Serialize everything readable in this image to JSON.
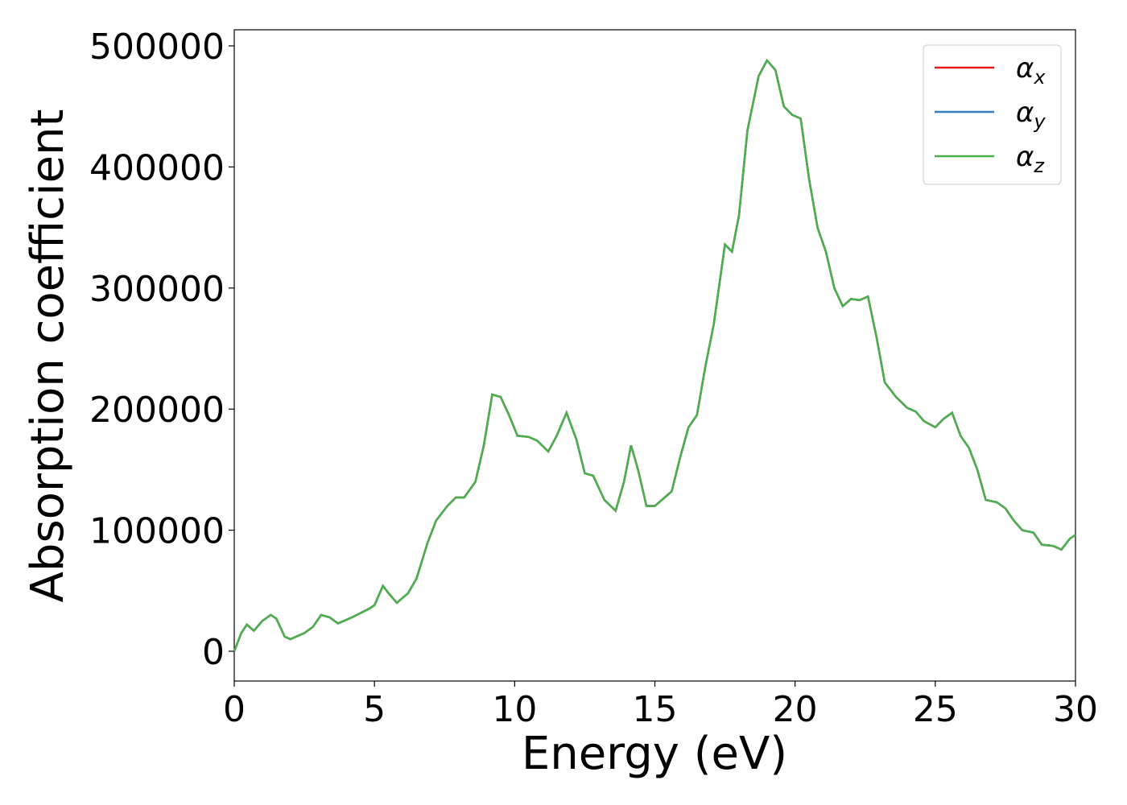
{
  "chart_data": {
    "type": "line",
    "xlabel": "Energy (eV)",
    "ylabel": "Absorption coefficient",
    "x": [
      0,
      0.25,
      0.45,
      0.7,
      1.0,
      1.3,
      1.5,
      1.8,
      2.0,
      2.5,
      2.8,
      3.1,
      3.4,
      3.7,
      4.2,
      4.8,
      5.0,
      5.3,
      5.5,
      5.8,
      6.2,
      6.5,
      6.9,
      7.2,
      7.6,
      7.9,
      8.2,
      8.6,
      8.9,
      9.2,
      9.5,
      9.8,
      10.1,
      10.5,
      10.8,
      11.2,
      11.5,
      11.85,
      12.2,
      12.5,
      12.8,
      13.2,
      13.6,
      13.9,
      14.15,
      14.4,
      14.7,
      15.0,
      15.3,
      15.6,
      15.9,
      16.2,
      16.5,
      16.8,
      17.1,
      17.5,
      17.75,
      18.0,
      18.3,
      18.7,
      19.0,
      19.3,
      19.6,
      19.9,
      20.2,
      20.5,
      20.8,
      21.1,
      21.4,
      21.7,
      22.0,
      22.3,
      22.6,
      22.9,
      23.2,
      23.6,
      24.0,
      24.3,
      24.6,
      25.0,
      25.3,
      25.6,
      25.9,
      26.2,
      26.5,
      26.8,
      27.2,
      27.5,
      27.8,
      28.1,
      28.5,
      28.8,
      29.2,
      29.5,
      29.8,
      30.0
    ],
    "series": [
      {
        "name": "αx",
        "color": "#e41a1c",
        "values": [
          0,
          15000,
          22000,
          17000,
          25000,
          30000,
          27000,
          12000,
          10000,
          15000,
          20000,
          30000,
          28000,
          23000,
          28000,
          35000,
          38000,
          54000,
          48000,
          40000,
          48000,
          60000,
          90000,
          108000,
          120000,
          127000,
          127000,
          140000,
          170000,
          212000,
          210000,
          195000,
          178000,
          177000,
          174000,
          165000,
          178000,
          197000,
          175000,
          147000,
          145000,
          125000,
          116000,
          140000,
          170000,
          150000,
          120000,
          120000,
          126000,
          132000,
          160000,
          185000,
          195000,
          235000,
          270000,
          336000,
          330000,
          360000,
          430000,
          475000,
          488000,
          480000,
          450000,
          443000,
          440000,
          390000,
          350000,
          330000,
          300000,
          285000,
          291000,
          290000,
          293000,
          260000,
          222000,
          210000,
          201000,
          198000,
          190000,
          185000,
          192000,
          197000,
          178000,
          168000,
          150000,
          125000,
          123000,
          118000,
          108000,
          100000,
          98000,
          88000,
          87000,
          84000,
          93000,
          96000
        ]
      },
      {
        "name": "αy",
        "color": "#377eb8",
        "values": [
          0,
          15000,
          22000,
          17000,
          25000,
          30000,
          27000,
          12000,
          10000,
          15000,
          20000,
          30000,
          28000,
          23000,
          28000,
          35000,
          38000,
          54000,
          48000,
          40000,
          48000,
          60000,
          90000,
          108000,
          120000,
          127000,
          127000,
          140000,
          170000,
          212000,
          210000,
          195000,
          178000,
          177000,
          174000,
          165000,
          178000,
          197000,
          175000,
          147000,
          145000,
          125000,
          116000,
          140000,
          170000,
          150000,
          120000,
          120000,
          126000,
          132000,
          160000,
          185000,
          195000,
          235000,
          270000,
          336000,
          330000,
          360000,
          430000,
          475000,
          488000,
          480000,
          450000,
          443000,
          440000,
          390000,
          350000,
          330000,
          300000,
          285000,
          291000,
          290000,
          293000,
          260000,
          222000,
          210000,
          201000,
          198000,
          190000,
          185000,
          192000,
          197000,
          178000,
          168000,
          150000,
          125000,
          123000,
          118000,
          108000,
          100000,
          98000,
          88000,
          87000,
          84000,
          93000,
          96000
        ]
      },
      {
        "name": "αz",
        "color": "#4daf4a",
        "values": [
          0,
          15000,
          22000,
          17000,
          25000,
          30000,
          27000,
          12000,
          10000,
          15000,
          20000,
          30000,
          28000,
          23000,
          28000,
          35000,
          38000,
          54000,
          48000,
          40000,
          48000,
          60000,
          90000,
          108000,
          120000,
          127000,
          127000,
          140000,
          170000,
          212000,
          210000,
          195000,
          178000,
          177000,
          174000,
          165000,
          178000,
          197000,
          175000,
          147000,
          145000,
          125000,
          116000,
          140000,
          170000,
          150000,
          120000,
          120000,
          126000,
          132000,
          160000,
          185000,
          195000,
          235000,
          270000,
          336000,
          330000,
          360000,
          430000,
          475000,
          488000,
          480000,
          450000,
          443000,
          440000,
          390000,
          350000,
          330000,
          300000,
          285000,
          291000,
          290000,
          293000,
          260000,
          222000,
          210000,
          201000,
          198000,
          190000,
          185000,
          192000,
          197000,
          178000,
          168000,
          150000,
          125000,
          123000,
          118000,
          108000,
          100000,
          98000,
          88000,
          87000,
          84000,
          93000,
          96000
        ]
      }
    ],
    "xlim": [
      0,
      30
    ],
    "xticks": [
      0,
      5,
      10,
      15,
      20,
      25,
      30
    ],
    "ylim": [
      -24600,
      513300
    ],
    "yticks": [
      0,
      100000,
      200000,
      300000,
      400000,
      500000
    ],
    "grid": false,
    "legend": "upper right"
  }
}
